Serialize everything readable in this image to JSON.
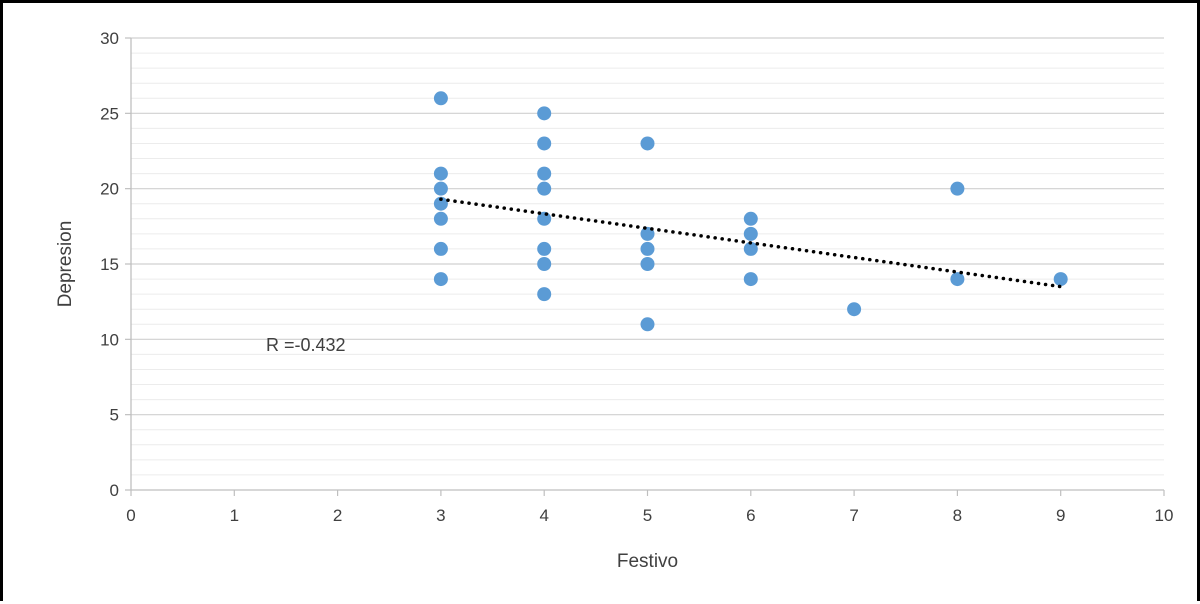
{
  "chart_data": {
    "type": "scatter",
    "xlabel": "Festivo",
    "ylabel": "Depresion",
    "xlim": [
      0,
      10
    ],
    "ylim": [
      0,
      30
    ],
    "x_ticks": [
      0,
      1,
      2,
      3,
      4,
      5,
      6,
      7,
      8,
      9,
      10
    ],
    "y_ticks": [
      0,
      5,
      10,
      15,
      20,
      25,
      30
    ],
    "grid": {
      "major_y": true,
      "minor_y": true,
      "x": false
    },
    "marker_color": "#5B9BD5",
    "trendline": {
      "style": "dotted",
      "color": "#000000",
      "x_start": 3,
      "y_start": 19.3,
      "x_end": 9,
      "y_end": 13.5
    },
    "annotation": {
      "text": "R =-0.432",
      "x": 1.5,
      "y": 9.9
    },
    "points": [
      {
        "x": 3,
        "y": 26
      },
      {
        "x": 3,
        "y": 21
      },
      {
        "x": 3,
        "y": 20
      },
      {
        "x": 3,
        "y": 19
      },
      {
        "x": 3,
        "y": 18
      },
      {
        "x": 3,
        "y": 16
      },
      {
        "x": 3,
        "y": 14
      },
      {
        "x": 4,
        "y": 25
      },
      {
        "x": 4,
        "y": 23
      },
      {
        "x": 4,
        "y": 21
      },
      {
        "x": 4,
        "y": 20
      },
      {
        "x": 4,
        "y": 18
      },
      {
        "x": 4,
        "y": 16
      },
      {
        "x": 4,
        "y": 15
      },
      {
        "x": 4,
        "y": 13
      },
      {
        "x": 5,
        "y": 23
      },
      {
        "x": 5,
        "y": 17
      },
      {
        "x": 5,
        "y": 16
      },
      {
        "x": 5,
        "y": 15
      },
      {
        "x": 5,
        "y": 11
      },
      {
        "x": 6,
        "y": 18
      },
      {
        "x": 6,
        "y": 17
      },
      {
        "x": 6,
        "y": 16
      },
      {
        "x": 6,
        "y": 14
      },
      {
        "x": 7,
        "y": 12
      },
      {
        "x": 8,
        "y": 20
      },
      {
        "x": 8,
        "y": 14
      },
      {
        "x": 9,
        "y": 14
      }
    ]
  }
}
